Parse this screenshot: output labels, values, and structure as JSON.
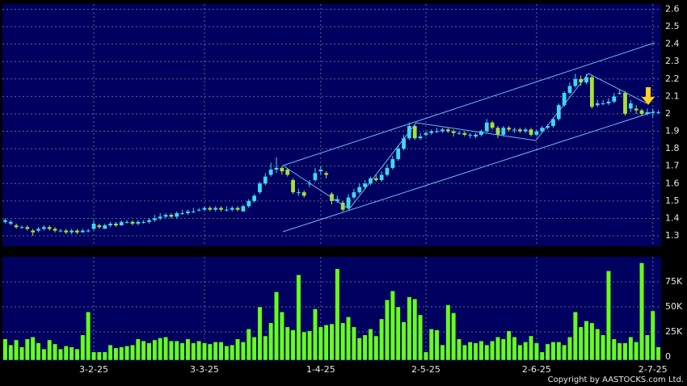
{
  "chart_data": {
    "type": "candlestick",
    "categories": [
      null,
      null,
      null,
      null,
      null,
      null,
      null,
      null,
      null,
      null,
      null,
      null,
      null,
      null,
      null,
      null,
      "3-2-25",
      null,
      null,
      null,
      null,
      null,
      null,
      null,
      null,
      null,
      null,
      null,
      null,
      null,
      null,
      null,
      null,
      null,
      null,
      null,
      "3-3-25",
      null,
      null,
      null,
      null,
      null,
      null,
      null,
      null,
      null,
      null,
      null,
      null,
      null,
      null,
      null,
      null,
      null,
      null,
      null,
      null,
      "1-4-25",
      null,
      null,
      null,
      null,
      null,
      null,
      null,
      null,
      null,
      null,
      null,
      null,
      null,
      null,
      null,
      null,
      null,
      null,
      "2-5-25",
      null,
      null,
      null,
      null,
      null,
      null,
      null,
      null,
      null,
      null,
      null,
      null,
      null,
      null,
      null,
      null,
      null,
      null,
      null,
      "2-6-25",
      null,
      null,
      null,
      null,
      null,
      null,
      null,
      null,
      null,
      null,
      null,
      null,
      null,
      null,
      null,
      null,
      null,
      null,
      null,
      null,
      "2-7-25",
      null
    ],
    "open": [
      1.38,
      1.37,
      1.36,
      1.35,
      1.35,
      1.33,
      1.33,
      1.34,
      1.35,
      1.34,
      1.33,
      1.33,
      1.32,
      1.33,
      1.32,
      1.33,
      1.34,
      1.36,
      1.34,
      1.36,
      1.37,
      1.36,
      1.38,
      1.38,
      1.37,
      1.38,
      1.38,
      1.39,
      1.4,
      1.41,
      1.42,
      1.41,
      1.43,
      1.43,
      1.44,
      1.45,
      1.45,
      1.46,
      1.45,
      1.46,
      1.45,
      1.45,
      1.46,
      1.44,
      1.47,
      1.5,
      1.55,
      1.6,
      1.65,
      1.68,
      1.69,
      1.68,
      1.62,
      1.55,
      1.55,
      1.6,
      1.62,
      1.67,
      1.66,
      1.54,
      1.5,
      1.49,
      1.46,
      1.52,
      1.55,
      1.58,
      1.6,
      1.63,
      1.62,
      1.65,
      1.69,
      1.74,
      1.8,
      1.86,
      1.93,
      1.86,
      1.88,
      1.89,
      1.9,
      1.9,
      1.91,
      1.9,
      1.89,
      1.89,
      1.88,
      1.87,
      1.88,
      1.9,
      1.95,
      1.92,
      1.88,
      1.92,
      1.91,
      1.91,
      1.9,
      1.91,
      1.88,
      1.9,
      1.92,
      1.93,
      1.97,
      2.05,
      2.12,
      2.16,
      2.2,
      2.18,
      2.21,
      2.05,
      2.06,
      2.06,
      2.07,
      2.12,
      2.12,
      2.03,
      2.03,
      2.02,
      2.0,
      2.01,
      2.01
    ],
    "high": [
      1.4,
      1.39,
      1.37,
      1.36,
      1.36,
      1.34,
      1.35,
      1.36,
      1.36,
      1.35,
      1.34,
      1.34,
      1.34,
      1.34,
      1.34,
      1.34,
      1.39,
      1.37,
      1.37,
      1.38,
      1.38,
      1.39,
      1.39,
      1.39,
      1.39,
      1.39,
      1.4,
      1.42,
      1.43,
      1.43,
      1.43,
      1.44,
      1.45,
      1.45,
      1.46,
      1.46,
      1.47,
      1.47,
      1.47,
      1.47,
      1.47,
      1.47,
      1.47,
      1.48,
      1.51,
      1.54,
      1.61,
      1.66,
      1.72,
      1.75,
      1.7,
      1.69,
      1.63,
      1.57,
      1.56,
      1.62,
      1.69,
      1.7,
      1.67,
      1.55,
      1.53,
      1.5,
      1.54,
      1.57,
      1.6,
      1.62,
      1.64,
      1.65,
      1.67,
      1.71,
      1.76,
      1.82,
      1.88,
      1.95,
      1.94,
      1.89,
      1.9,
      1.91,
      1.92,
      1.92,
      1.92,
      1.91,
      1.9,
      1.9,
      1.89,
      1.89,
      1.91,
      1.97,
      1.96,
      1.93,
      1.93,
      1.93,
      1.92,
      1.92,
      1.92,
      1.92,
      1.91,
      1.93,
      1.94,
      1.98,
      2.06,
      2.13,
      2.18,
      2.23,
      2.22,
      2.23,
      2.22,
      2.08,
      2.08,
      2.09,
      2.12,
      2.14,
      2.13,
      2.08,
      2.05,
      2.03,
      2.03,
      2.03,
      2.02
    ],
    "low": [
      1.37,
      1.36,
      1.34,
      1.34,
      1.33,
      1.3,
      1.32,
      1.33,
      1.33,
      1.32,
      1.32,
      1.31,
      1.31,
      1.31,
      1.32,
      1.32,
      1.33,
      1.34,
      1.34,
      1.35,
      1.35,
      1.36,
      1.37,
      1.36,
      1.36,
      1.37,
      1.37,
      1.38,
      1.39,
      1.4,
      1.4,
      1.4,
      1.42,
      1.42,
      1.43,
      1.44,
      1.44,
      1.44,
      1.44,
      1.44,
      1.44,
      1.44,
      1.44,
      1.44,
      1.46,
      1.49,
      1.54,
      1.59,
      1.64,
      1.66,
      1.65,
      1.64,
      1.54,
      1.53,
      1.52,
      1.58,
      1.61,
      1.65,
      1.63,
      1.48,
      1.49,
      1.44,
      1.45,
      1.51,
      1.54,
      1.57,
      1.59,
      1.61,
      1.61,
      1.64,
      1.68,
      1.73,
      1.79,
      1.85,
      1.85,
      1.85,
      1.87,
      1.88,
      1.89,
      1.89,
      1.89,
      1.87,
      1.88,
      1.87,
      1.86,
      1.86,
      1.87,
      1.89,
      1.91,
      1.86,
      1.87,
      1.9,
      1.89,
      1.89,
      1.89,
      1.87,
      1.87,
      1.89,
      1.91,
      1.92,
      1.96,
      2.04,
      2.11,
      2.15,
      2.16,
      2.17,
      2.03,
      2.04,
      2.05,
      2.05,
      2.06,
      2.11,
      1.99,
      2.01,
      2.0,
      1.99,
      1.99,
      1.98,
      2.0
    ],
    "close": [
      1.39,
      1.38,
      1.35,
      1.35,
      1.34,
      1.32,
      1.34,
      1.35,
      1.34,
      1.33,
      1.33,
      1.32,
      1.33,
      1.32,
      1.33,
      1.33,
      1.37,
      1.35,
      1.36,
      1.37,
      1.36,
      1.38,
      1.38,
      1.37,
      1.38,
      1.38,
      1.39,
      1.4,
      1.41,
      1.42,
      1.41,
      1.43,
      1.43,
      1.44,
      1.44,
      1.45,
      1.46,
      1.45,
      1.46,
      1.45,
      1.45,
      1.46,
      1.45,
      1.47,
      1.5,
      1.53,
      1.6,
      1.64,
      1.68,
      1.69,
      1.67,
      1.65,
      1.55,
      1.55,
      1.53,
      1.6,
      1.66,
      1.68,
      1.65,
      1.5,
      1.51,
      1.45,
      1.52,
      1.55,
      1.58,
      1.6,
      1.63,
      1.62,
      1.65,
      1.69,
      1.74,
      1.8,
      1.86,
      1.93,
      1.86,
      1.87,
      1.89,
      1.9,
      1.9,
      1.91,
      1.9,
      1.89,
      1.89,
      1.88,
      1.88,
      1.88,
      1.9,
      1.95,
      1.92,
      1.88,
      1.92,
      1.91,
      1.91,
      1.9,
      1.91,
      1.88,
      1.9,
      1.92,
      1.93,
      1.97,
      2.05,
      2.12,
      2.16,
      2.2,
      2.18,
      2.21,
      2.04,
      2.06,
      2.06,
      2.07,
      2.1,
      2.12,
      2.0,
      2.06,
      2.02,
      2.0,
      2.01,
      2.01,
      2.01
    ],
    "up_color": "#3fd8f0",
    "down_color": "#a8e03a",
    "ylim": [
      1.24,
      2.63
    ],
    "yticks": [
      1.3,
      1.4,
      1.5,
      1.6,
      1.7,
      1.8,
      1.9,
      2,
      2.1,
      2.2,
      2.3,
      2.4,
      2.5,
      2.6
    ],
    "grid": true,
    "volume": {
      "type": "bar",
      "color": "#66ff1a",
      "values": [
        18000,
        12000,
        17000,
        10000,
        18000,
        20000,
        14000,
        8000,
        17000,
        13000,
        8000,
        11000,
        10000,
        8000,
        22000,
        45000,
        5000,
        5000,
        5000,
        12000,
        9000,
        10000,
        11000,
        12000,
        18000,
        16000,
        14000,
        17000,
        19000,
        20000,
        16000,
        16000,
        14000,
        18000,
        14000,
        16000,
        14000,
        13000,
        15000,
        15000,
        11000,
        12000,
        18000,
        15000,
        28000,
        20000,
        50000,
        21000,
        34000,
        65000,
        45000,
        30000,
        27000,
        82000,
        25000,
        26000,
        48000,
        30000,
        32000,
        33000,
        88000,
        34000,
        40000,
        30000,
        19000,
        22000,
        28000,
        21000,
        38000,
        57000,
        66000,
        50000,
        35000,
        60000,
        58000,
        42000,
        5000,
        28000,
        27000,
        12000,
        52000,
        44000,
        18000,
        12000,
        15000,
        14000,
        16000,
        12000,
        16000,
        20000,
        18000,
        26000,
        20000,
        12000,
        15000,
        21000,
        14000,
        5000,
        13000,
        15000,
        15000,
        12000,
        20000,
        45000,
        30000,
        36000,
        34000,
        28000,
        22000,
        86000,
        18000,
        14000,
        14000,
        20000,
        15000,
        94000,
        22000,
        46000,
        10000
      ],
      "ylim": [
        0,
        100000
      ],
      "yticks": [
        0,
        {
          "value": 25000,
          "label": "25K"
        },
        {
          "value": 50000,
          "label": "50K"
        },
        {
          "value": 75000,
          "label": "75K"
        }
      ]
    },
    "footnote": "Copyright by AASTOCKS.com Ltd."
  }
}
